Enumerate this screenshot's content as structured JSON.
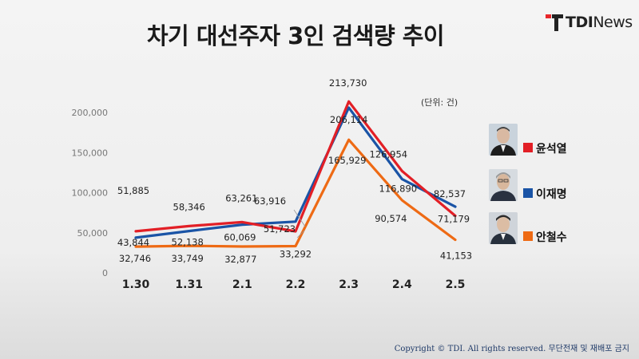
{
  "header": {
    "title": "차기 대선주자 3인 검색량 추이"
  },
  "brand": {
    "name_bold": "TDI",
    "name_light": "News",
    "accent": "#e8262a"
  },
  "footer": {
    "copyright": "Copyright © TDI. All rights reserved. 무단전재 및 재배포 금지"
  },
  "chart_data": {
    "type": "line",
    "title": "차기 대선주자 3인 검색량 추이",
    "unit": "(단위: 건)",
    "xlabel": "",
    "ylabel": "",
    "categories": [
      "1.30",
      "1.31",
      "2.1",
      "2.2",
      "2.3",
      "2.4",
      "2.5"
    ],
    "y_ticks": [
      "200,000",
      "150,000",
      "100,000",
      "50,000",
      "0"
    ],
    "ylim": [
      0,
      200000
    ],
    "grid": false,
    "legend": "right",
    "series": [
      {
        "name": "윤석열",
        "color": "#e21f26",
        "values": [
          51885,
          58346,
          63261,
          51723,
          213730,
          126954,
          71179
        ],
        "labels": [
          "51,885",
          "58,346",
          "63,261",
          "51,723",
          "213,730",
          "126,954",
          "71,179"
        ]
      },
      {
        "name": "이재명",
        "color": "#1a54a6",
        "values": [
          43844,
          52138,
          60069,
          63916,
          206114,
          116890,
          82537
        ],
        "labels": [
          "43,844",
          "52,138",
          "60,069",
          "63,916",
          "206,114",
          "116,890",
          "82,537"
        ]
      },
      {
        "name": "안철수",
        "color": "#ee6a14",
        "values": [
          32746,
          33749,
          32877,
          33292,
          165929,
          90574,
          41153
        ],
        "labels": [
          "32,746",
          "33,749",
          "32,877",
          "33,292",
          "165,929",
          "90,574",
          "41,153"
        ]
      }
    ]
  }
}
